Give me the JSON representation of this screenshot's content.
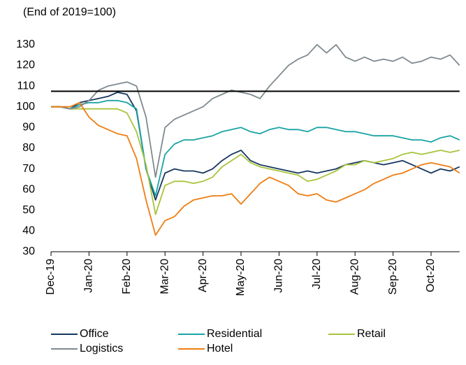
{
  "chart_data": {
    "type": "line",
    "subtitle": "(End of 2019=100)",
    "categories": [
      "Dec-19",
      null,
      null,
      null,
      "Jan-20",
      null,
      null,
      null,
      "Feb-20",
      null,
      null,
      null,
      "Mar-20",
      null,
      null,
      null,
      "Apr-20",
      null,
      null,
      null,
      "May-20",
      null,
      null,
      null,
      "Jun-20",
      null,
      null,
      null,
      "Jul-20",
      null,
      null,
      null,
      "Aug-20",
      null,
      null,
      null,
      "Sep-20",
      null,
      null,
      null,
      "Oct-20",
      null,
      null,
      null
    ],
    "series": [
      {
        "name": "Office",
        "color": "#17375e",
        "values": [
          100,
          100,
          99,
          102,
          103,
          104,
          105,
          107,
          106,
          98,
          70,
          55,
          68,
          70,
          69,
          69,
          68,
          70,
          74,
          77,
          79,
          74,
          72,
          71,
          70,
          69,
          68,
          69,
          68,
          69,
          70,
          72,
          73,
          74,
          73,
          72,
          73,
          74,
          72,
          70,
          68,
          70,
          69,
          71
        ]
      },
      {
        "name": "Residential",
        "color": "#1aa3a3",
        "values": [
          100,
          100,
          99,
          101,
          102,
          102,
          103,
          103,
          102,
          99,
          70,
          57,
          77,
          82,
          84,
          84,
          85,
          86,
          88,
          89,
          90,
          88,
          87,
          89,
          90,
          89,
          89,
          88,
          90,
          90,
          89,
          88,
          88,
          87,
          86,
          86,
          86,
          85,
          84,
          84,
          83,
          85,
          86,
          84
        ]
      },
      {
        "name": "Retail",
        "color": "#a8c43c",
        "values": [
          100,
          100,
          99,
          99,
          99,
          99,
          99,
          99,
          97,
          88,
          72,
          48,
          62,
          64,
          64,
          63,
          64,
          66,
          71,
          74,
          77,
          73,
          71,
          70,
          69,
          68,
          67,
          64,
          65,
          67,
          69,
          72,
          72,
          74,
          73,
          74,
          75,
          77,
          78,
          77,
          78,
          79,
          78,
          79
        ]
      },
      {
        "name": "Logistics",
        "color": "#7f8a8f",
        "values": [
          100,
          100,
          99,
          100,
          103,
          108,
          110,
          111,
          112,
          110,
          95,
          66,
          90,
          94,
          96,
          98,
          100,
          104,
          106,
          108,
          107,
          106,
          104,
          110,
          115,
          120,
          123,
          125,
          130,
          126,
          130,
          124,
          122,
          124,
          122,
          123,
          122,
          124,
          121,
          122,
          124,
          123,
          125,
          120
        ]
      },
      {
        "name": "Hotel",
        "color": "#ee7d12",
        "values": [
          100,
          100,
          100,
          102,
          95,
          91,
          89,
          87,
          86,
          75,
          55,
          38,
          45,
          47,
          52,
          55,
          56,
          57,
          57,
          58,
          53,
          58,
          63,
          66,
          64,
          62,
          58,
          57,
          58,
          55,
          54,
          56,
          58,
          60,
          63,
          65,
          67,
          68,
          70,
          72,
          73,
          72,
          71,
          68
        ]
      }
    ],
    "reference_line": {
      "value": 107.5,
      "color": "#000000"
    },
    "ylim": [
      30,
      133
    ],
    "yticks": [
      30,
      40,
      50,
      60,
      70,
      80,
      90,
      100,
      110,
      120,
      130
    ],
    "grid": false
  }
}
